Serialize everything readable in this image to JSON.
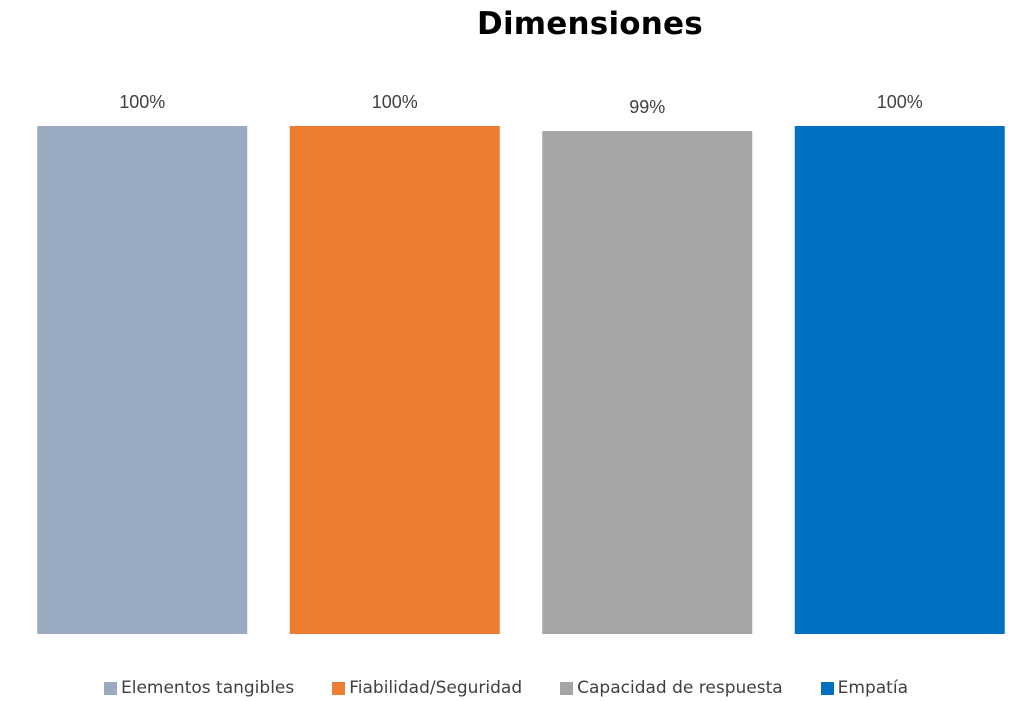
{
  "chart_data": {
    "type": "bar",
    "title": "Dimensiones",
    "categories": [
      "Elementos tangibles",
      "Fiabilidad/Seguridad",
      "Capacidad de respuesta",
      "Empatía"
    ],
    "values": [
      100,
      100,
      99,
      100
    ],
    "data_labels": [
      "100%",
      "100%",
      "99%",
      "100%"
    ],
    "colors": [
      "#9AAAC0",
      "#ED7D31",
      "#A5A5A5",
      "#0070C0"
    ],
    "ylim": [
      0,
      100
    ],
    "value_format": "percent",
    "xlabel": "",
    "ylabel": "",
    "grid": false,
    "legend_position": "bottom"
  }
}
